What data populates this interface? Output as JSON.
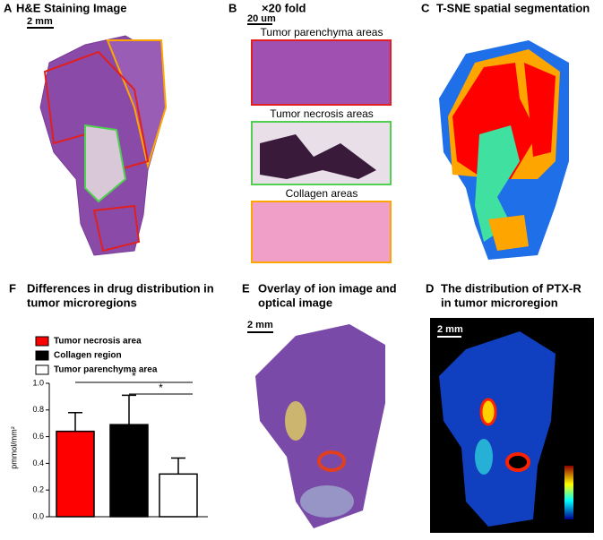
{
  "panels": [
    {
      "letter": "A",
      "title": [
        "H&E Staining Image"
      ],
      "scale": "2 mm"
    },
    {
      "letter": "B",
      "title": [
        "×20 fold"
      ],
      "scale": "20 um",
      "images": [
        "Tumor parenchyma areas",
        "Tumor necrosis areas",
        "Collagen areas"
      ]
    },
    {
      "letter": "C",
      "title": [
        "T-SNE spatial segmentation"
      ]
    },
    {
      "letter": "E",
      "title": [
        "Overlay of ion image and",
        "optical image"
      ],
      "scale": "2 mm"
    },
    {
      "letter": "D",
      "title": [
        "The distribution of PTX-R",
        "in tumor microregion"
      ],
      "scale": "2 mm"
    }
  ],
  "chart_data": {
    "type": "bar",
    "letter": "F",
    "title": [
      "Differences in drug distribution in",
      "tumor microregions"
    ],
    "y_label": "pmmol/mm²",
    "series": [
      {
        "name": "Tumor necrosis area",
        "color": "#ff0000",
        "values": [
          0.64
        ],
        "errors": [
          0.14
        ]
      },
      {
        "name": "Collagen region",
        "color": "#000000",
        "values": [
          0.69
        ],
        "errors": [
          0.22
        ]
      },
      {
        "name": "Tumor parenchyma area",
        "color": "#ffffff",
        "values": [
          0.32
        ],
        "errors": [
          0.12
        ]
      }
    ],
    "ylim": [
      0,
      1
    ],
    "yticks": [
      {
        "value": 0,
        "label": "0.0"
      },
      {
        "value": 0.2,
        "label": "0.2"
      },
      {
        "value": 0.4,
        "label": "0.4"
      },
      {
        "value": 0.6,
        "label": "0.6"
      },
      {
        "value": 0.8,
        "label": "0.8"
      },
      {
        "value": 1,
        "label": "1.0"
      }
    ],
    "annotations": [
      "*",
      "*"
    ]
  }
}
